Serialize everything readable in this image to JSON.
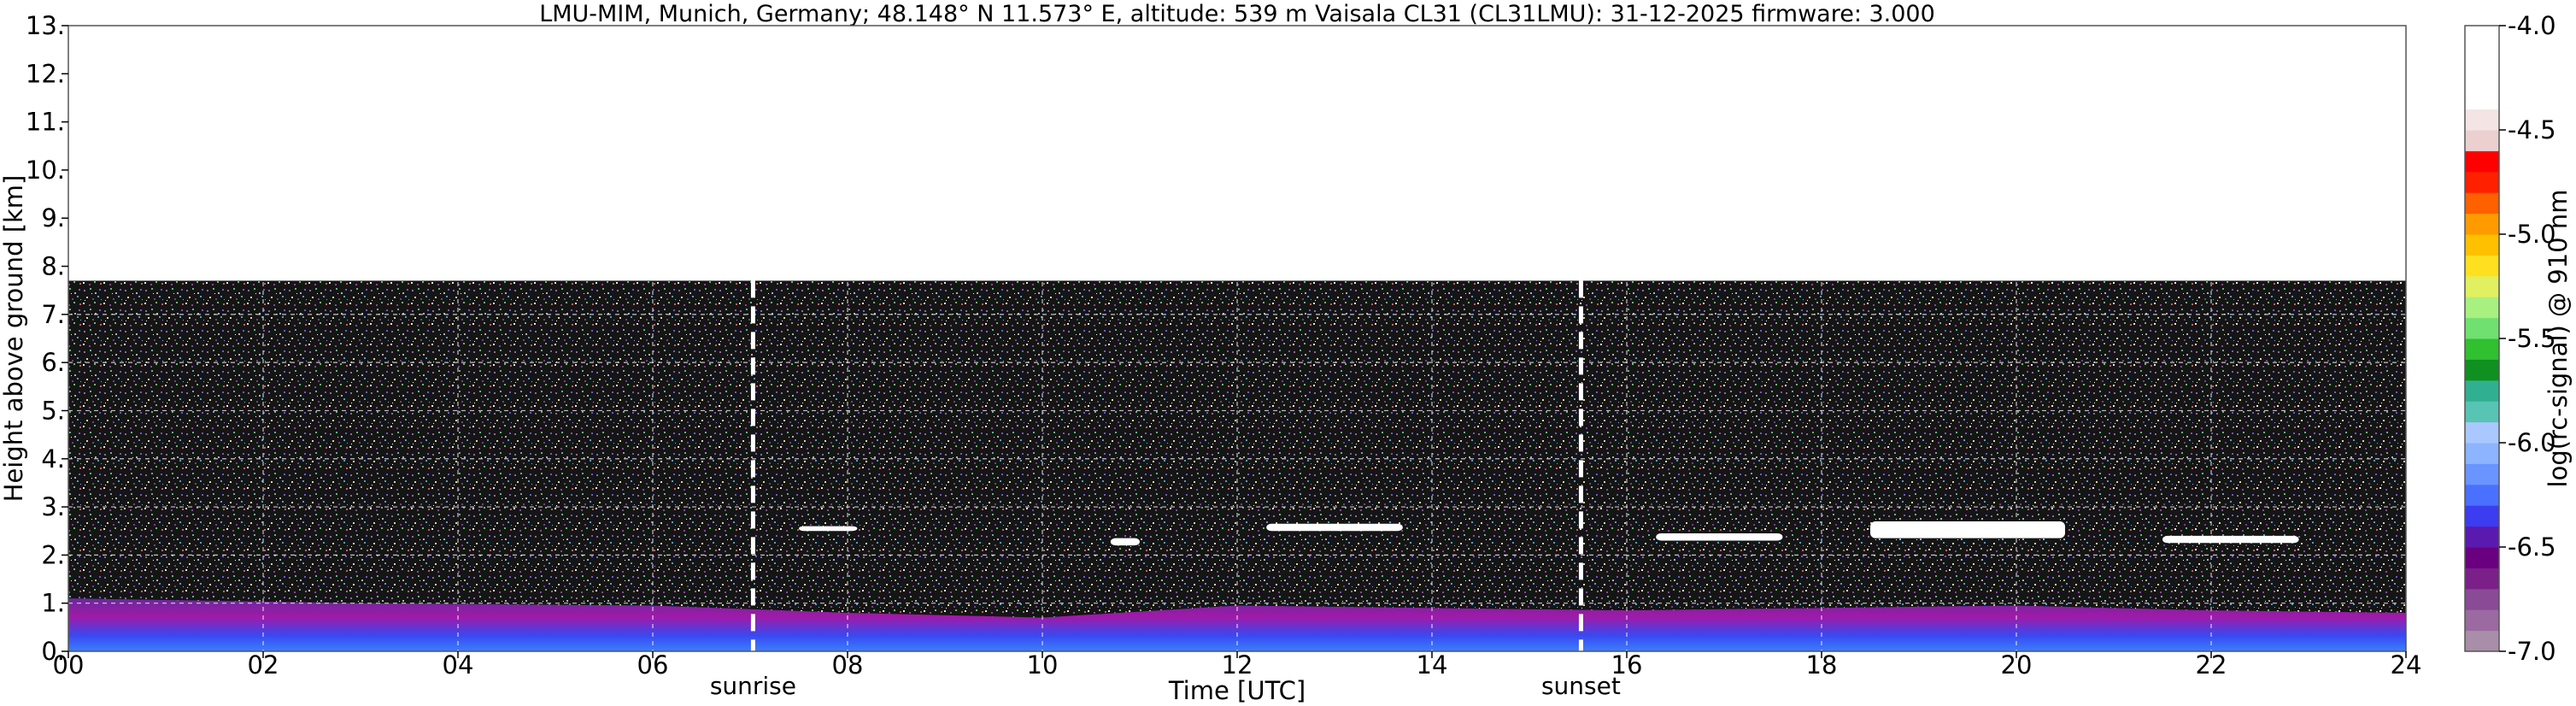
{
  "chart_data": {
    "type": "heatmap",
    "title": "LMU-MIM, Munich, Germany; 48.148° N 11.573° E, altitude: 539 m    Vaisala CL31 (CL31LMU): 31-12-2025    firmware: 3.000",
    "xlabel": "Time [UTC]",
    "ylabel": "Height above ground [km]",
    "xlim": [
      0,
      24
    ],
    "ylim": [
      0,
      13
    ],
    "x_ticks": [
      {
        "value": 0,
        "label": "00"
      },
      {
        "value": 2,
        "label": "02"
      },
      {
        "value": 4,
        "label": "04"
      },
      {
        "value": 6,
        "label": "06"
      },
      {
        "value": 8,
        "label": "08"
      },
      {
        "value": 10,
        "label": "10"
      },
      {
        "value": 12,
        "label": "12"
      },
      {
        "value": 14,
        "label": "14"
      },
      {
        "value": 16,
        "label": "16"
      },
      {
        "value": 18,
        "label": "18"
      },
      {
        "value": 20,
        "label": "20"
      },
      {
        "value": 22,
        "label": "22"
      },
      {
        "value": 24,
        "label": "24"
      }
    ],
    "y_ticks": [
      {
        "value": 0,
        "label": "0."
      },
      {
        "value": 1,
        "label": "1."
      },
      {
        "value": 2,
        "label": "2."
      },
      {
        "value": 3,
        "label": "3."
      },
      {
        "value": 4,
        "label": "4."
      },
      {
        "value": 5,
        "label": "5."
      },
      {
        "value": 6,
        "label": "6."
      },
      {
        "value": 7,
        "label": "7."
      },
      {
        "value": 8,
        "label": "8."
      },
      {
        "value": 9,
        "label": "9."
      },
      {
        "value": 10,
        "label": "10."
      },
      {
        "value": 11,
        "label": "11."
      },
      {
        "value": 12,
        "label": "12."
      },
      {
        "value": 13,
        "label": "13."
      }
    ],
    "grid": true,
    "grid_style": "dashed white",
    "data_top_km": 7.7,
    "markers": [
      {
        "label": "sunrise",
        "time": 7.03
      },
      {
        "label": "sunset",
        "time": 15.53
      }
    ],
    "aerosol_layer_top_km": [
      {
        "t": 0,
        "h": 1.1
      },
      {
        "t": 3,
        "h": 1.0
      },
      {
        "t": 6,
        "h": 0.95
      },
      {
        "t": 8,
        "h": 0.8
      },
      {
        "t": 10,
        "h": 0.7
      },
      {
        "t": 12,
        "h": 0.95
      },
      {
        "t": 14,
        "h": 0.9
      },
      {
        "t": 16,
        "h": 0.85
      },
      {
        "t": 18,
        "h": 0.9
      },
      {
        "t": 20,
        "h": 0.95
      },
      {
        "t": 22,
        "h": 0.85
      },
      {
        "t": 24,
        "h": 0.8
      }
    ],
    "clouds": [
      {
        "t_start": 7.5,
        "t_end": 8.1,
        "base_km": 2.5,
        "top_km": 2.6
      },
      {
        "t_start": 10.7,
        "t_end": 11.0,
        "base_km": 2.2,
        "top_km": 2.35
      },
      {
        "t_start": 12.3,
        "t_end": 13.7,
        "base_km": 2.5,
        "top_km": 2.65
      },
      {
        "t_start": 16.3,
        "t_end": 17.6,
        "base_km": 2.3,
        "top_km": 2.45
      },
      {
        "t_start": 18.5,
        "t_end": 20.5,
        "base_km": 2.35,
        "top_km": 2.7
      },
      {
        "t_start": 21.5,
        "t_end": 22.9,
        "base_km": 2.25,
        "top_km": 2.4
      }
    ],
    "colorbar": {
      "label": "log(rc-signal) @ 910 nm",
      "range": [
        -7.0,
        -4.0
      ],
      "ticks": [
        {
          "value": -4.0,
          "label": "-4.0"
        },
        {
          "value": -4.5,
          "label": "-4.5"
        },
        {
          "value": -5.0,
          "label": "-5.0"
        },
        {
          "value": -5.5,
          "label": "-5.5"
        },
        {
          "value": -6.0,
          "label": "-6.0"
        },
        {
          "value": -6.5,
          "label": "-6.5"
        },
        {
          "value": -7.0,
          "label": "-7.0"
        }
      ],
      "colors": [
        "#a88ea8",
        "#9a6aa0",
        "#8a4a96",
        "#7a2088",
        "#6a0080",
        "#5a1ab0",
        "#3c3cf0",
        "#4a70ff",
        "#6a94ff",
        "#8cb4ff",
        "#aac8ff",
        "#58c4b4",
        "#30b090",
        "#109020",
        "#30c030",
        "#70e070",
        "#a8f080",
        "#e0f060",
        "#ffe020",
        "#ffc000",
        "#ff9a00",
        "#ff6000",
        "#ff2000",
        "#ff0000",
        "#ecd0d0",
        "#f4e4e4",
        "#ffffff",
        "#ffffff",
        "#ffffff",
        "#ffffff"
      ]
    }
  }
}
